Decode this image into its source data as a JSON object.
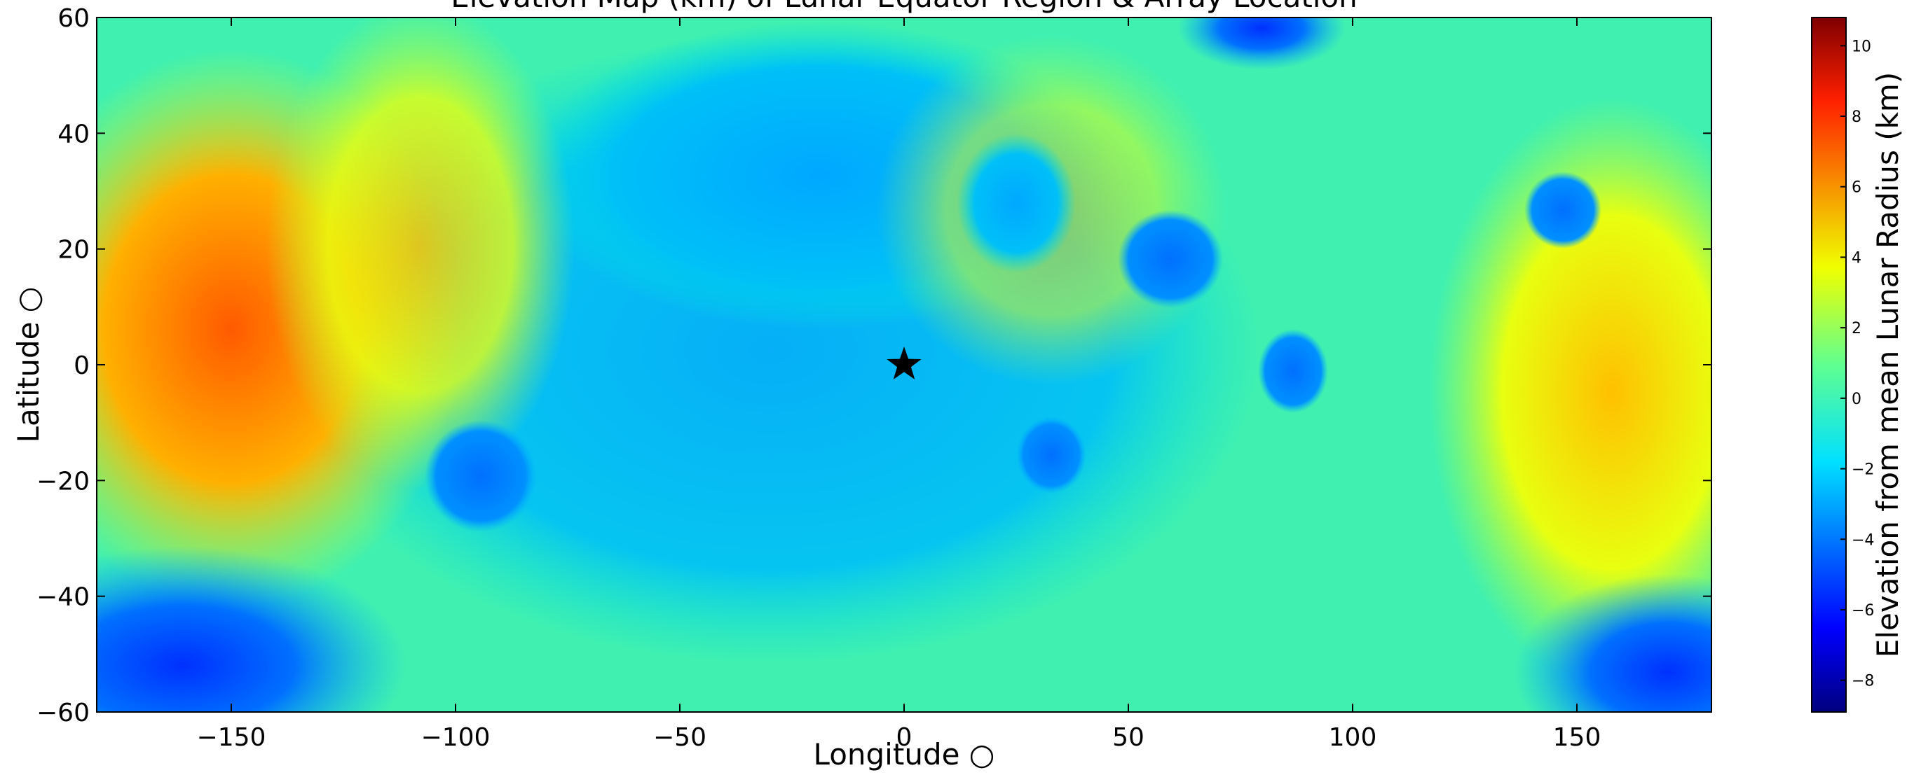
{
  "chart_data": {
    "type": "scatter",
    "title": "Elevation Map (km) of Lunar Equator Region & Array Location",
    "x_label": "Longitude ○",
    "y_label": "Latitude ○",
    "x": [
      0
    ],
    "y": [
      0
    ],
    "marker": "star",
    "color": "#000000",
    "xlim": [
      -180,
      180
    ],
    "ylim": [
      -60,
      60
    ],
    "xticks": [
      {
        "value": -150,
        "label": "−150"
      },
      {
        "value": -100,
        "label": "−100"
      },
      {
        "value": -50,
        "label": "−50"
      },
      0,
      50,
      100,
      150
    ],
    "yticks": [
      {
        "value": -60,
        "label": "−60"
      },
      {
        "value": -40,
        "label": "−40"
      },
      {
        "value": -20,
        "label": "−20"
      },
      0,
      20,
      40,
      60
    ],
    "colorbar": {
      "label": "Elevation from mean Lunar Radius (km)",
      "lim": [
        -8.9,
        10.8
      ],
      "ticks": [
        {
          "value": -8,
          "label": "−8"
        },
        {
          "value": -6,
          "label": "−6"
        },
        {
          "value": -4,
          "label": "−4"
        },
        {
          "value": -2,
          "label": "−2"
        },
        0,
        2,
        4,
        6,
        8,
        10
      ]
    }
  }
}
